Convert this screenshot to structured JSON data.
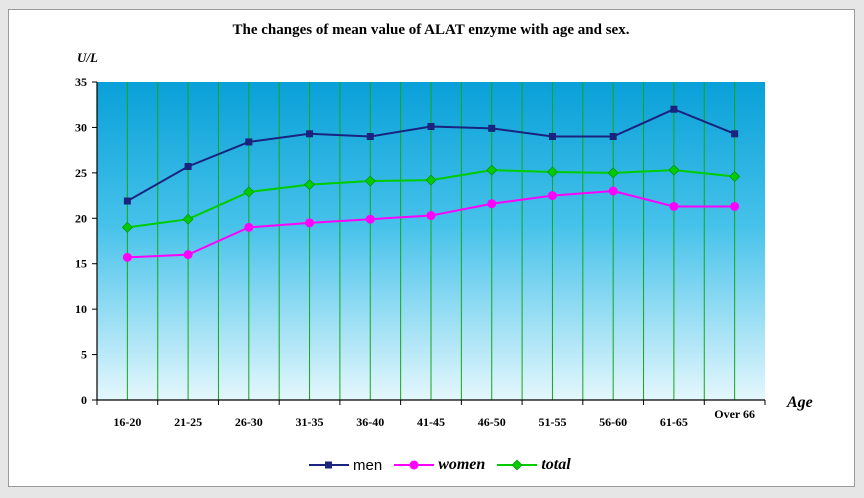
{
  "chart_data": {
    "type": "line",
    "title": "The changes of mean value of ALAT enzyme with age and sex.",
    "ylabel": "U/L",
    "xlabel": "Age",
    "categories": [
      "16-20",
      "21-25",
      "26-30",
      "31-35",
      "36-40",
      "41-45",
      "46-50",
      "51-55",
      "56-60",
      "61-65",
      "Over 66"
    ],
    "ylim": [
      0,
      35
    ],
    "yticks": [
      "0",
      "5",
      "10",
      "15",
      "20",
      "25",
      "30",
      "35"
    ],
    "series": [
      {
        "name": "men",
        "color": "#1a237e",
        "marker": "square",
        "values": [
          21.9,
          25.7,
          28.4,
          29.3,
          29.0,
          30.1,
          29.9,
          29.0,
          29.0,
          32.0,
          29.3
        ]
      },
      {
        "name": "women",
        "color": "#ff00ff",
        "marker": "circle",
        "values": [
          15.7,
          16.0,
          19.0,
          19.5,
          19.9,
          20.3,
          21.6,
          22.5,
          23.0,
          21.3,
          21.3
        ]
      },
      {
        "name": "total",
        "color": "#00cc00",
        "marker": "diamond",
        "values": [
          19.0,
          19.9,
          22.9,
          23.7,
          24.1,
          24.2,
          25.3,
          25.1,
          25.0,
          25.3,
          24.6
        ]
      }
    ],
    "grid": "vertical",
    "legend_position": "bottom",
    "colors": {
      "plot_top": "#09a0d8",
      "plot_bottom": "#e4f7fd",
      "gridline": "#14a814"
    }
  }
}
